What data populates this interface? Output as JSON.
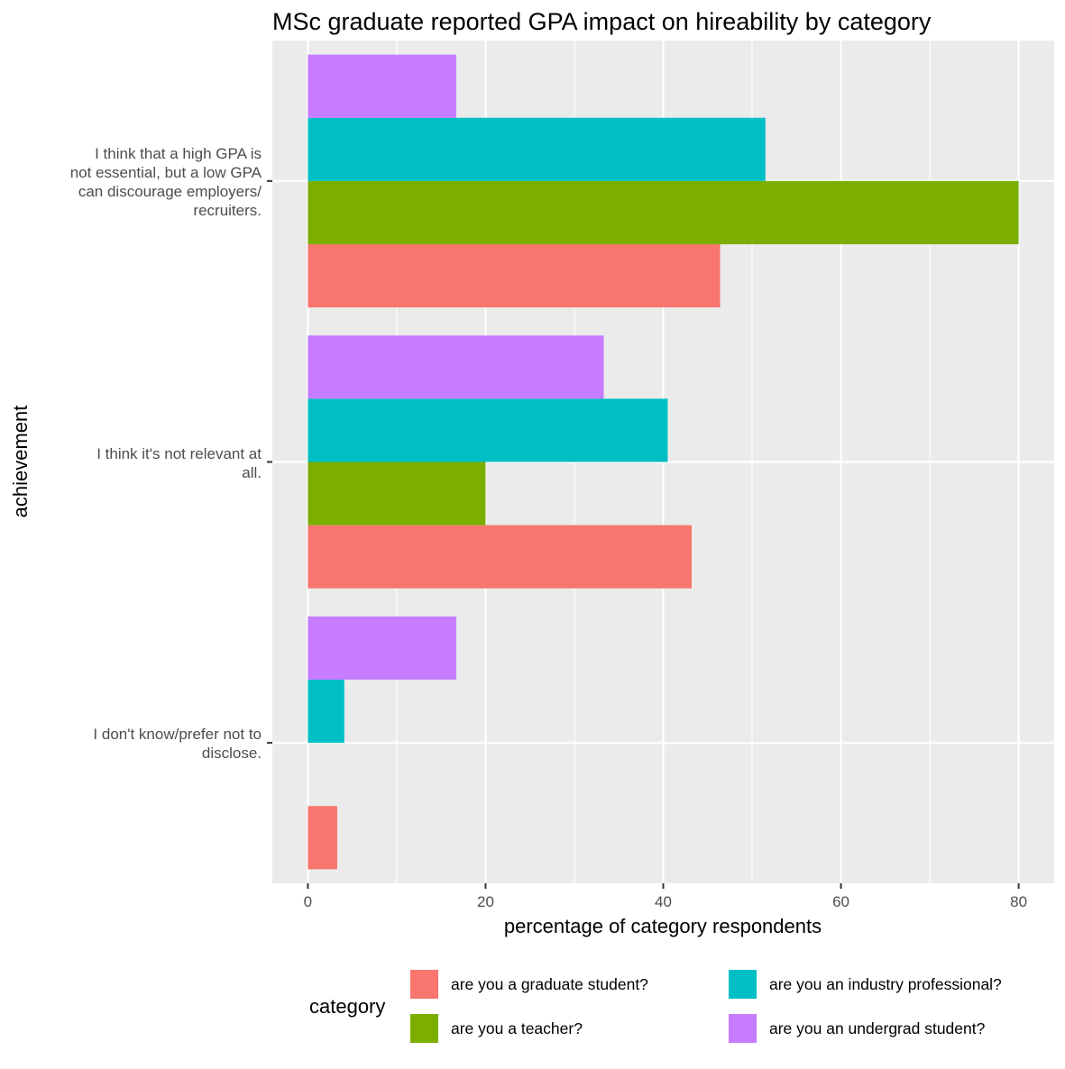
{
  "chart_data": {
    "type": "bar",
    "orientation": "horizontal",
    "title": "MSc graduate reported GPA impact on hireability by category",
    "xlabel": "percentage of category respondents",
    "ylabel": "achievement",
    "xlim": [
      -4,
      84
    ],
    "xticks": [
      0,
      20,
      40,
      60,
      80
    ],
    "grid": true,
    "legend_position": "bottom",
    "legend_title": "category",
    "categories": [
      "I think that a high GPA is\nnot essential, but a low GPA\ncan discourage employers/\nrecruiters.",
      "I think it's not relevant at\nall.",
      "I don't know/prefer not to\ndisclose."
    ],
    "series": [
      {
        "name": "are you a graduate student?",
        "color": "#F8766D",
        "values": [
          46.4,
          43.2,
          3.3
        ]
      },
      {
        "name": "are you a teacher?",
        "color": "#7CAE00",
        "values": [
          80,
          20,
          0
        ]
      },
      {
        "name": "are you an industry professional?",
        "color": "#00BFC4",
        "values": [
          51.5,
          40.5,
          4.1
        ]
      },
      {
        "name": "are you an undergrad student?",
        "color": "#C77CFF",
        "values": [
          16.7,
          33.3,
          16.7
        ]
      }
    ]
  }
}
